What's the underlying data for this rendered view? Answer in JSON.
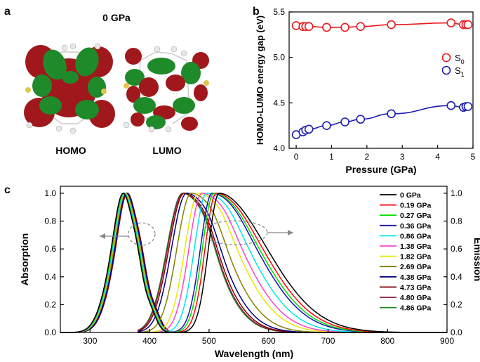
{
  "panel_labels": {
    "a": "a",
    "b": "b",
    "c": "c"
  },
  "panel_a": {
    "title": "0 GPa",
    "orbitals": [
      {
        "label": "HOMO",
        "lobe_colors": [
          "#a0181c",
          "#1f8a2a"
        ]
      },
      {
        "label": "LUMO",
        "lobe_colors": [
          "#a0181c",
          "#1f8a2a"
        ]
      }
    ]
  },
  "chart_data": [
    {
      "type": "scatter",
      "panel": "b",
      "title": "",
      "xlabel": "Pressure (GPa)",
      "ylabel": "HOMO-LUMO  energy gap (eV)",
      "xlim": [
        -0.2,
        5.0
      ],
      "ylim": [
        4.0,
        5.5
      ],
      "xticks": [
        0,
        1,
        2,
        3,
        4,
        5
      ],
      "xtick_labels": [
        "0",
        "1",
        "2",
        "3",
        "4",
        "5"
      ],
      "yticks": [
        4.0,
        4.5,
        5.0,
        5.5
      ],
      "ytick_labels": [
        "4.0",
        "4.5",
        "5.0",
        "5.5"
      ],
      "legend_position": "right",
      "x": [
        0,
        0.19,
        0.27,
        0.36,
        0.86,
        1.38,
        1.82,
        2.69,
        4.38,
        4.73,
        4.8,
        4.86
      ],
      "series": [
        {
          "name": "S0",
          "label_main": "S",
          "label_sub": "0",
          "color": "#e8191e",
          "values": [
            5.35,
            5.34,
            5.34,
            5.34,
            5.33,
            5.33,
            5.34,
            5.36,
            5.38,
            5.36,
            5.36,
            5.36
          ]
        },
        {
          "name": "S1",
          "label_main": "S",
          "label_sub": "1",
          "color": "#1c1cb4",
          "values": [
            4.15,
            4.18,
            4.2,
            4.21,
            4.25,
            4.29,
            4.32,
            4.38,
            4.47,
            4.45,
            4.46,
            4.46
          ]
        }
      ]
    },
    {
      "type": "line",
      "panel": "c",
      "title": "",
      "xlabel": "Wavelength (nm)",
      "ylabel_left": "Absorption",
      "ylabel_right": "Emission",
      "xlim": [
        250,
        900
      ],
      "ylim": [
        0,
        1.05
      ],
      "xticks": [
        300,
        400,
        500,
        600,
        700,
        800,
        900
      ],
      "xtick_labels": [
        "300",
        "400",
        "500",
        "600",
        "700",
        "800",
        "900"
      ],
      "yticks": [
        0.0,
        0.2,
        0.4,
        0.6,
        0.8,
        1.0
      ],
      "ytick_labels": [
        "0.0",
        "0.2",
        "0.4",
        "0.6",
        "0.8",
        "1.0"
      ],
      "legend_position": "top-right",
      "series": [
        {
          "name": "0 GPa",
          "color": "#000000",
          "abs_peak": 358,
          "em_peak": 517
        },
        {
          "name": "0.19 GPa",
          "color": "#ff0000",
          "abs_peak": 358,
          "em_peak": 512
        },
        {
          "name": "0.27 GPa",
          "color": "#00e000",
          "abs_peak": 359,
          "em_peak": 508
        },
        {
          "name": "0.36 GPa",
          "color": "#1111b8",
          "abs_peak": 359,
          "em_peak": 505
        },
        {
          "name": "0.86 GPa",
          "color": "#00e8e8",
          "abs_peak": 360,
          "em_peak": 496
        },
        {
          "name": "1.38 GPa",
          "color": "#ff44cc",
          "abs_peak": 360,
          "em_peak": 488
        },
        {
          "name": "1.82 GPa",
          "color": "#e8e800",
          "abs_peak": 361,
          "em_peak": 482
        },
        {
          "name": "2.69 GPa",
          "color": "#808000",
          "abs_peak": 362,
          "em_peak": 470
        },
        {
          "name": "4.38 GPa",
          "color": "#000080",
          "abs_peak": 364,
          "em_peak": 462
        },
        {
          "name": "4.73 GPa",
          "color": "#800000",
          "abs_peak": 365,
          "em_peak": 458
        },
        {
          "name": "4.80 GPa",
          "color": "#8b1a3a",
          "abs_peak": 365,
          "em_peak": 456
        },
        {
          "name": "4.86 GPa",
          "color": "#1f8a2a",
          "abs_peak": 365,
          "em_peak": 455
        }
      ]
    }
  ]
}
